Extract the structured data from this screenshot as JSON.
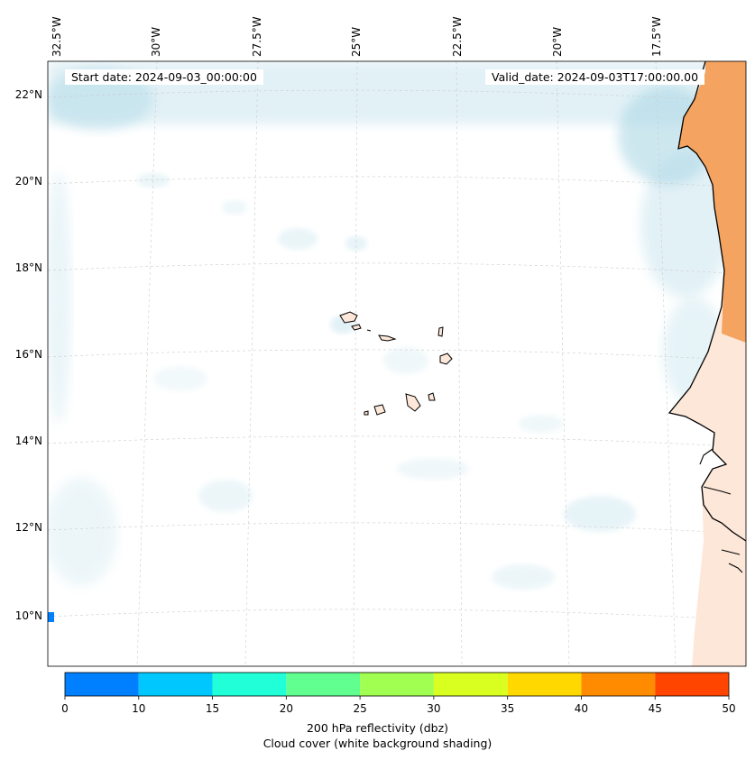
{
  "header": {
    "start_date": "Start date: 2024-09-03_00:00:00",
    "valid_date": "Valid_date: 2024-09-03T17:00:00.00"
  },
  "axes": {
    "longitude_labels": [
      "32.5°W",
      "30°W",
      "27.5°W",
      "25°W",
      "22.5°W",
      "20°W",
      "17.5°W"
    ],
    "latitude_labels": [
      "22°N",
      "20°N",
      "18°N",
      "16°N",
      "14°N",
      "12°N",
      "10°N"
    ]
  },
  "colorbar": {
    "ticks": [
      "0",
      "10",
      "15",
      "20",
      "25",
      "30",
      "35",
      "40",
      "45",
      "50"
    ],
    "colors": [
      "#0080ff",
      "#00c8ff",
      "#20ffd8",
      "#60ff90",
      "#a0ff50",
      "#d8ff20",
      "#ffd800",
      "#ff8c00",
      "#ff4500"
    ],
    "title_line1": "200 hPa reflectivity (dbz)",
    "title_line2": "Cloud cover (white background shading)"
  },
  "colors": {
    "land_desert": "#f4a460",
    "land_light": "#fde7d8",
    "cloud": "#add8e6",
    "reflectivity_low": "#0080ff"
  }
}
